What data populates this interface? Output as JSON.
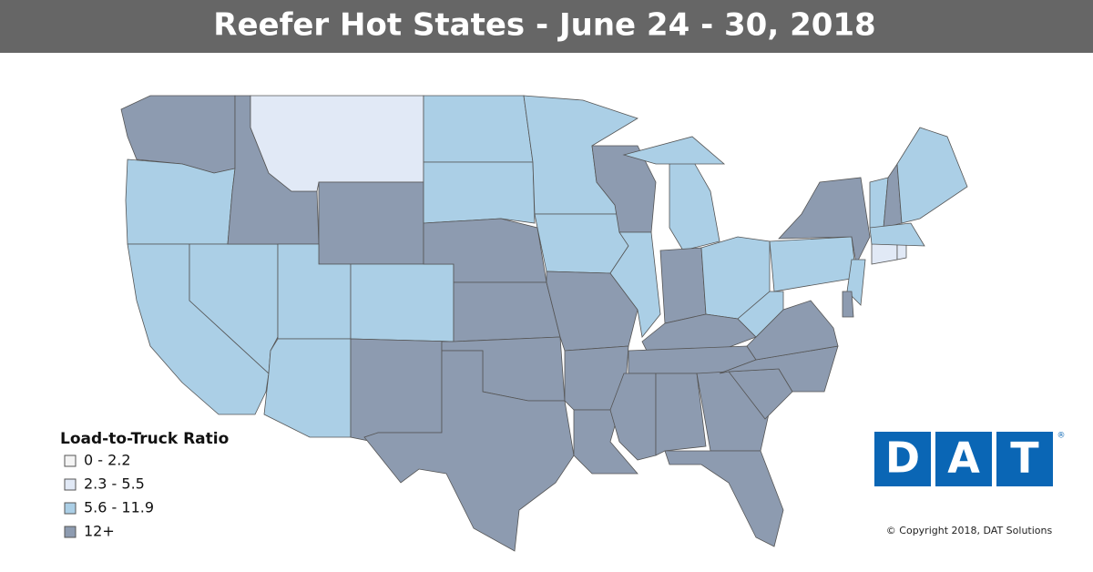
{
  "header": {
    "title": "Reefer Hot States - June 24 - 30, 2018"
  },
  "legend": {
    "title": "Load-to-Truck Ratio",
    "items": [
      {
        "label": "0 - 2.2",
        "color": "#f4f4f4"
      },
      {
        "label": "2.3 - 5.5",
        "color": "#e1e9f6"
      },
      {
        "label": "5.6 - 11.9",
        "color": "#abcfe6"
      },
      {
        "label": "12+",
        "color": "#8d9bb0"
      }
    ]
  },
  "regions": [
    3,
    2,
    2,
    2,
    3,
    1,
    3,
    2,
    2,
    2,
    3,
    2,
    2,
    3,
    3,
    3,
    3,
    2,
    2,
    3,
    3,
    3,
    3,
    2,
    2,
    2,
    3,
    2,
    3,
    3,
    3,
    3,
    3,
    3,
    3,
    3,
    3,
    2,
    2,
    3,
    2,
    3,
    2,
    1,
    1,
    2,
    3,
    2
  ],
  "logo": {
    "letters": [
      "D",
      "A",
      "T"
    ],
    "mark": "®"
  },
  "copyright": "© Copyright 2018, DAT Solutions"
}
